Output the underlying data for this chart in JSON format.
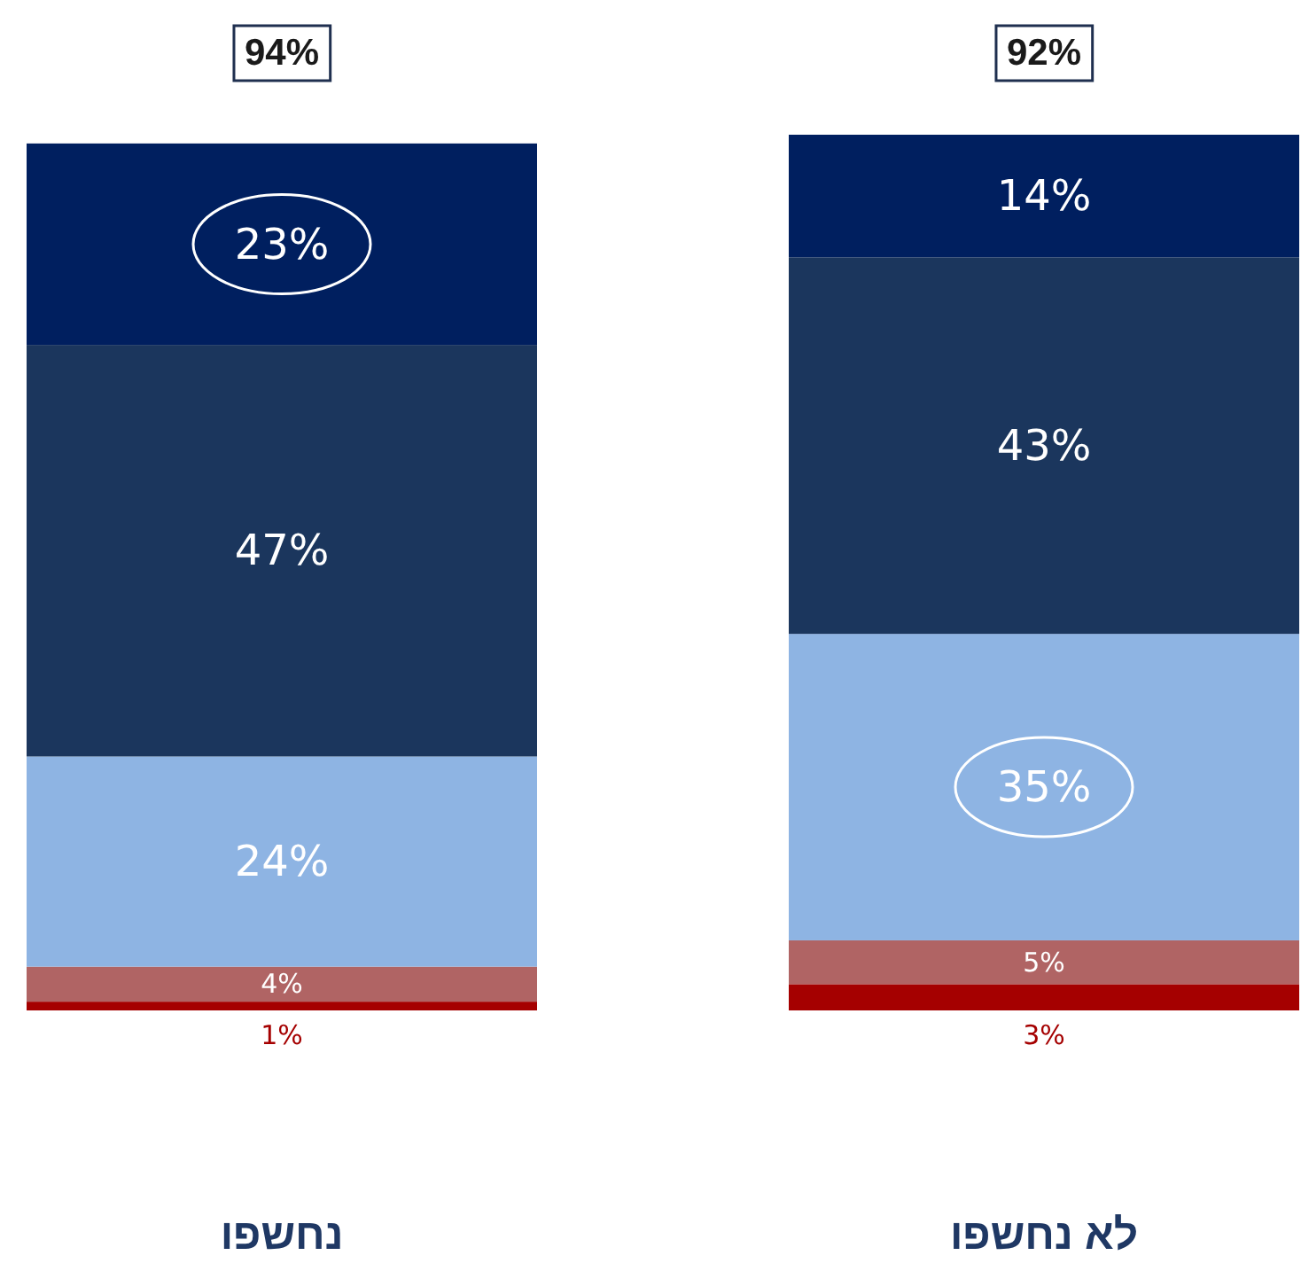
{
  "chart_data": {
    "type": "bar",
    "stacked": true,
    "categories": [
      "נחשפו",
      "לא נחשפו"
    ],
    "series": [
      {
        "color": "#a50000",
        "values": [
          1,
          3
        ],
        "value_labels": [
          "1%",
          "3%"
        ]
      },
      {
        "color": "#b06464",
        "values": [
          4,
          5
        ],
        "value_labels": [
          "4%",
          "5%"
        ]
      },
      {
        "color": "#8eb4e3",
        "values": [
          24,
          35
        ],
        "value_labels": [
          "24%",
          "35%"
        ]
      },
      {
        "color": "#1b365d",
        "values": [
          47,
          43
        ],
        "value_labels": [
          "47%",
          "43%"
        ]
      },
      {
        "color": "#001f5f",
        "values": [
          23,
          14
        ],
        "value_labels": [
          "23%",
          "14%"
        ]
      }
    ],
    "annotations": [
      "94%",
      "92%"
    ]
  }
}
